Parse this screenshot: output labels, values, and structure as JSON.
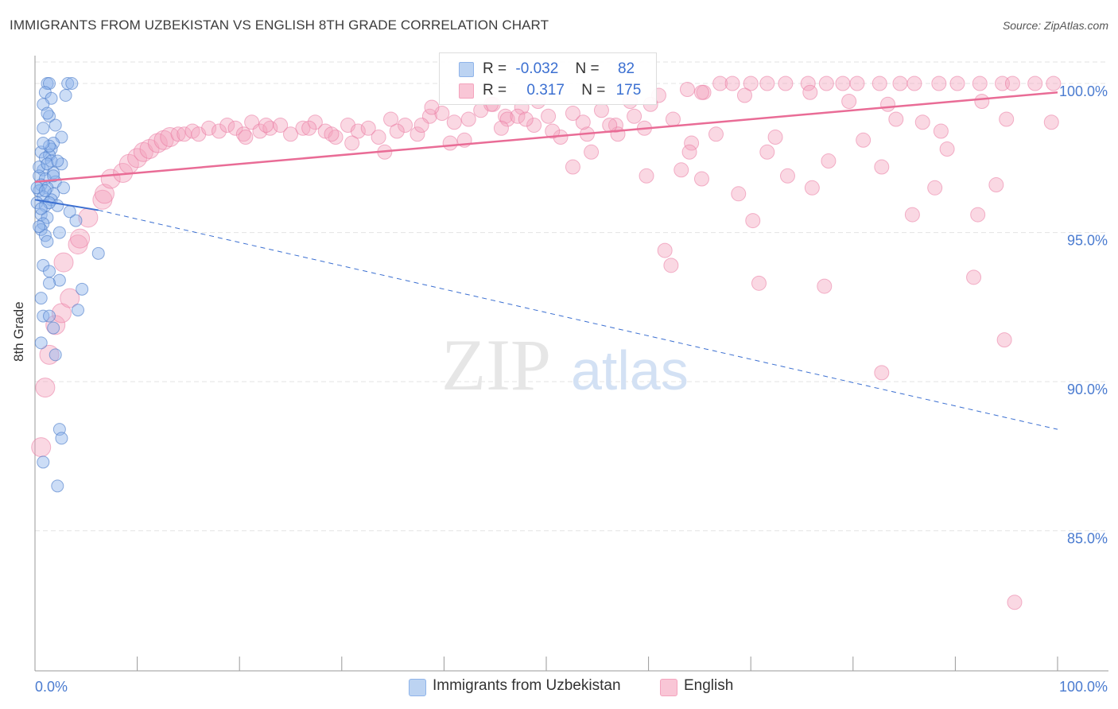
{
  "title": "IMMIGRANTS FROM UZBEKISTAN VS ENGLISH 8TH GRADE CORRELATION CHART",
  "source": "Source: ZipAtlas.com",
  "watermark": {
    "zip": "ZIP",
    "atlas": "atlas"
  },
  "legend": {
    "rows": [
      {
        "r_label": "R =",
        "r_value": "-0.032",
        "n_label": "N =",
        "n_value": "82",
        "color": "#8fb4ea"
      },
      {
        "r_label": "R =",
        "r_value": "0.317",
        "n_label": "N =",
        "n_value": "175",
        "color": "#f4a3bd"
      }
    ]
  },
  "bottom_legend": [
    {
      "label": "Immigrants from Uzbekistan",
      "color": "#8fb4ea"
    },
    {
      "label": "English",
      "color": "#f4a3bd"
    }
  ],
  "colors": {
    "blue": "#3b6fd1",
    "pink": "#e96c96",
    "grid": "#e3e3e3",
    "axis_text": "#4a7bd0"
  },
  "chart_data": {
    "type": "scatter",
    "title": "IMMIGRANTS FROM UZBEKISTAN VS ENGLISH 8TH GRADE CORRELATION CHART",
    "xlabel": "",
    "ylabel": "8th Grade",
    "xlim": [
      0,
      100
    ],
    "ylim": [
      80.3,
      100.8
    ],
    "x_tick_labels": [
      "0.0%",
      "100.0%"
    ],
    "y_ticks": [
      85,
      90,
      95,
      100
    ],
    "y_tick_labels": [
      "85.0%",
      "90.0%",
      "95.0%",
      "100.0%"
    ],
    "grid": true,
    "legend_position": "top-center",
    "series": [
      {
        "name": "Immigrants from Uzbekistan",
        "color": "#8fb4ea",
        "trend": {
          "x": [
            0,
            6.2
          ],
          "y": [
            96.1,
            95.75
          ],
          "extended_x": [
            6.2,
            100
          ],
          "extended_y": [
            95.75,
            88.4
          ]
        },
        "points": [
          [
            1.2,
            100
          ],
          [
            1.4,
            100
          ],
          [
            3.2,
            100
          ],
          [
            3.6,
            100
          ],
          [
            1.0,
            99.7
          ],
          [
            1.6,
            99.5
          ],
          [
            0.8,
            99.3
          ],
          [
            3.0,
            99.6
          ],
          [
            1.4,
            98.9
          ],
          [
            2.0,
            98.6
          ],
          [
            0.8,
            98.5
          ],
          [
            2.6,
            98.2
          ],
          [
            1.8,
            98.0
          ],
          [
            1.6,
            97.8
          ],
          [
            0.6,
            97.7
          ],
          [
            1.4,
            97.6
          ],
          [
            1.0,
            97.5
          ],
          [
            1.6,
            97.4
          ],
          [
            2.6,
            97.3
          ],
          [
            0.8,
            97.1
          ],
          [
            1.8,
            97.0
          ],
          [
            0.4,
            96.9
          ],
          [
            1.0,
            96.8
          ],
          [
            2.0,
            96.7
          ],
          [
            0.6,
            96.6
          ],
          [
            1.2,
            96.5
          ],
          [
            2.8,
            96.5
          ],
          [
            0.4,
            96.4
          ],
          [
            1.8,
            96.3
          ],
          [
            0.8,
            96.2
          ],
          [
            1.6,
            96.1
          ],
          [
            0.2,
            96.0
          ],
          [
            1.0,
            95.9
          ],
          [
            2.2,
            95.9
          ],
          [
            3.4,
            95.7
          ],
          [
            0.6,
            95.6
          ],
          [
            1.2,
            95.5
          ],
          [
            4.0,
            95.4
          ],
          [
            0.8,
            95.3
          ],
          [
            0.6,
            95.1
          ],
          [
            2.4,
            95.0
          ],
          [
            1.0,
            94.9
          ],
          [
            1.2,
            94.7
          ],
          [
            6.2,
            94.3
          ],
          [
            0.8,
            93.9
          ],
          [
            1.4,
            93.7
          ],
          [
            2.4,
            93.4
          ],
          [
            1.4,
            93.3
          ],
          [
            4.6,
            93.1
          ],
          [
            0.6,
            92.8
          ],
          [
            4.2,
            92.4
          ],
          [
            0.8,
            92.2
          ],
          [
            1.4,
            92.2
          ],
          [
            1.8,
            91.8
          ],
          [
            0.6,
            91.3
          ],
          [
            2.0,
            90.9
          ],
          [
            2.4,
            88.4
          ],
          [
            2.6,
            88.1
          ],
          [
            0.8,
            87.3
          ],
          [
            2.2,
            86.5
          ],
          [
            0.4,
            97.2
          ],
          [
            1.2,
            97.3
          ],
          [
            0.2,
            96.5
          ],
          [
            1.4,
            96.0
          ],
          [
            0.6,
            95.8
          ],
          [
            1.0,
            96.4
          ],
          [
            0.4,
            95.2
          ],
          [
            1.8,
            96.9
          ],
          [
            1.4,
            97.9
          ],
          [
            0.8,
            98.0
          ],
          [
            2.2,
            97.4
          ],
          [
            1.2,
            99.0
          ]
        ]
      },
      {
        "name": "English",
        "color": "#f4a3bd",
        "trend": {
          "x": [
            0,
            100
          ],
          "y": [
            96.7,
            99.7
          ]
        },
        "points": [
          [
            0.6,
            87.8
          ],
          [
            1.0,
            89.8
          ],
          [
            1.4,
            90.9
          ],
          [
            2.0,
            91.9
          ],
          [
            2.6,
            92.3
          ],
          [
            3.4,
            92.8
          ],
          [
            2.8,
            94.0
          ],
          [
            4.2,
            94.6
          ],
          [
            4.4,
            94.8
          ],
          [
            5.2,
            95.5
          ],
          [
            6.6,
            96.1
          ],
          [
            6.8,
            96.3
          ],
          [
            7.4,
            96.8
          ],
          [
            8.6,
            97.0
          ],
          [
            9.2,
            97.3
          ],
          [
            10.0,
            97.5
          ],
          [
            10.6,
            97.7
          ],
          [
            11.2,
            97.8
          ],
          [
            12.0,
            98.0
          ],
          [
            12.6,
            98.1
          ],
          [
            13.2,
            98.2
          ],
          [
            14.0,
            98.3
          ],
          [
            14.6,
            98.3
          ],
          [
            15.4,
            98.4
          ],
          [
            16.0,
            98.3
          ],
          [
            17.0,
            98.5
          ],
          [
            18.0,
            98.4
          ],
          [
            18.8,
            98.6
          ],
          [
            19.6,
            98.5
          ],
          [
            20.4,
            98.3
          ],
          [
            21.2,
            98.7
          ],
          [
            22.0,
            98.4
          ],
          [
            23.0,
            98.5
          ],
          [
            24.0,
            98.6
          ],
          [
            25.0,
            98.3
          ],
          [
            26.2,
            98.5
          ],
          [
            27.4,
            98.7
          ],
          [
            28.4,
            98.4
          ],
          [
            29.4,
            98.2
          ],
          [
            30.6,
            98.6
          ],
          [
            31.6,
            98.4
          ],
          [
            32.6,
            98.5
          ],
          [
            33.6,
            98.2
          ],
          [
            34.8,
            98.8
          ],
          [
            36.2,
            98.6
          ],
          [
            37.4,
            98.3
          ],
          [
            38.6,
            98.9
          ],
          [
            39.8,
            99.0
          ],
          [
            41.0,
            98.7
          ],
          [
            42.4,
            98.8
          ],
          [
            43.6,
            99.1
          ],
          [
            44.8,
            99.3
          ],
          [
            46.0,
            98.9
          ],
          [
            47.6,
            99.2
          ],
          [
            48.8,
            98.6
          ],
          [
            50.2,
            98.9
          ],
          [
            51.4,
            98.2
          ],
          [
            52.6,
            99.0
          ],
          [
            54.0,
            98.3
          ],
          [
            55.4,
            99.1
          ],
          [
            56.8,
            98.6
          ],
          [
            58.2,
            99.4
          ],
          [
            59.6,
            98.5
          ],
          [
            61.0,
            99.6
          ],
          [
            62.4,
            98.8
          ],
          [
            63.8,
            99.8
          ],
          [
            65.4,
            99.7
          ],
          [
            67.0,
            100
          ],
          [
            68.2,
            100
          ],
          [
            70.0,
            100
          ],
          [
            71.6,
            100
          ],
          [
            73.4,
            100
          ],
          [
            75.6,
            100
          ],
          [
            77.4,
            100
          ],
          [
            79.0,
            100
          ],
          [
            80.4,
            100
          ],
          [
            82.6,
            100
          ],
          [
            84.6,
            100
          ],
          [
            86.0,
            100
          ],
          [
            88.4,
            100
          ],
          [
            90.2,
            100
          ],
          [
            92.4,
            100
          ],
          [
            94.6,
            100
          ],
          [
            95.6,
            100
          ],
          [
            97.8,
            100
          ],
          [
            99.6,
            100
          ],
          [
            75.8,
            99.7
          ],
          [
            79.6,
            99.4
          ],
          [
            69.4,
            99.6
          ],
          [
            65.2,
            99.7
          ],
          [
            83.4,
            99.3
          ],
          [
            99.4,
            98.7
          ],
          [
            34.2,
            97.7
          ],
          [
            40.6,
            98.0
          ],
          [
            46.2,
            98.8
          ],
          [
            47.2,
            98.9
          ],
          [
            52.6,
            97.2
          ],
          [
            54.4,
            97.7
          ],
          [
            57.0,
            98.3
          ],
          [
            59.8,
            96.9
          ],
          [
            63.2,
            97.1
          ],
          [
            64.2,
            98.0
          ],
          [
            65.2,
            96.8
          ],
          [
            68.8,
            96.3
          ],
          [
            70.2,
            95.4
          ],
          [
            71.6,
            97.7
          ],
          [
            73.6,
            96.9
          ],
          [
            76.0,
            96.5
          ],
          [
            77.6,
            97.4
          ],
          [
            81.0,
            98.1
          ],
          [
            82.8,
            97.2
          ],
          [
            84.2,
            98.8
          ],
          [
            86.8,
            98.7
          ],
          [
            88.0,
            96.5
          ],
          [
            89.2,
            97.8
          ],
          [
            85.8,
            95.6
          ],
          [
            92.2,
            95.6
          ],
          [
            94.0,
            96.6
          ],
          [
            70.8,
            93.3
          ],
          [
            77.2,
            93.2
          ],
          [
            61.6,
            94.4
          ],
          [
            62.2,
            93.9
          ],
          [
            91.8,
            93.5
          ],
          [
            82.8,
            90.3
          ],
          [
            94.8,
            91.4
          ],
          [
            95.8,
            82.6
          ],
          [
            38.8,
            99.2
          ],
          [
            44.6,
            99.3
          ],
          [
            49.2,
            99.4
          ],
          [
            60.2,
            99.3
          ],
          [
            64.0,
            97.7
          ],
          [
            66.6,
            98.3
          ],
          [
            72.4,
            98.2
          ],
          [
            88.6,
            98.4
          ],
          [
            92.6,
            99.4
          ],
          [
            95.0,
            98.8
          ],
          [
            20.6,
            98.2
          ],
          [
            22.6,
            98.6
          ],
          [
            26.8,
            98.5
          ],
          [
            29.0,
            98.3
          ],
          [
            31.0,
            98.0
          ],
          [
            35.4,
            98.4
          ],
          [
            37.8,
            98.6
          ],
          [
            42.0,
            98.1
          ],
          [
            45.6,
            98.5
          ],
          [
            48.0,
            98.8
          ],
          [
            50.6,
            98.4
          ],
          [
            53.6,
            98.7
          ],
          [
            56.2,
            98.6
          ],
          [
            58.6,
            98.9
          ]
        ]
      }
    ]
  }
}
